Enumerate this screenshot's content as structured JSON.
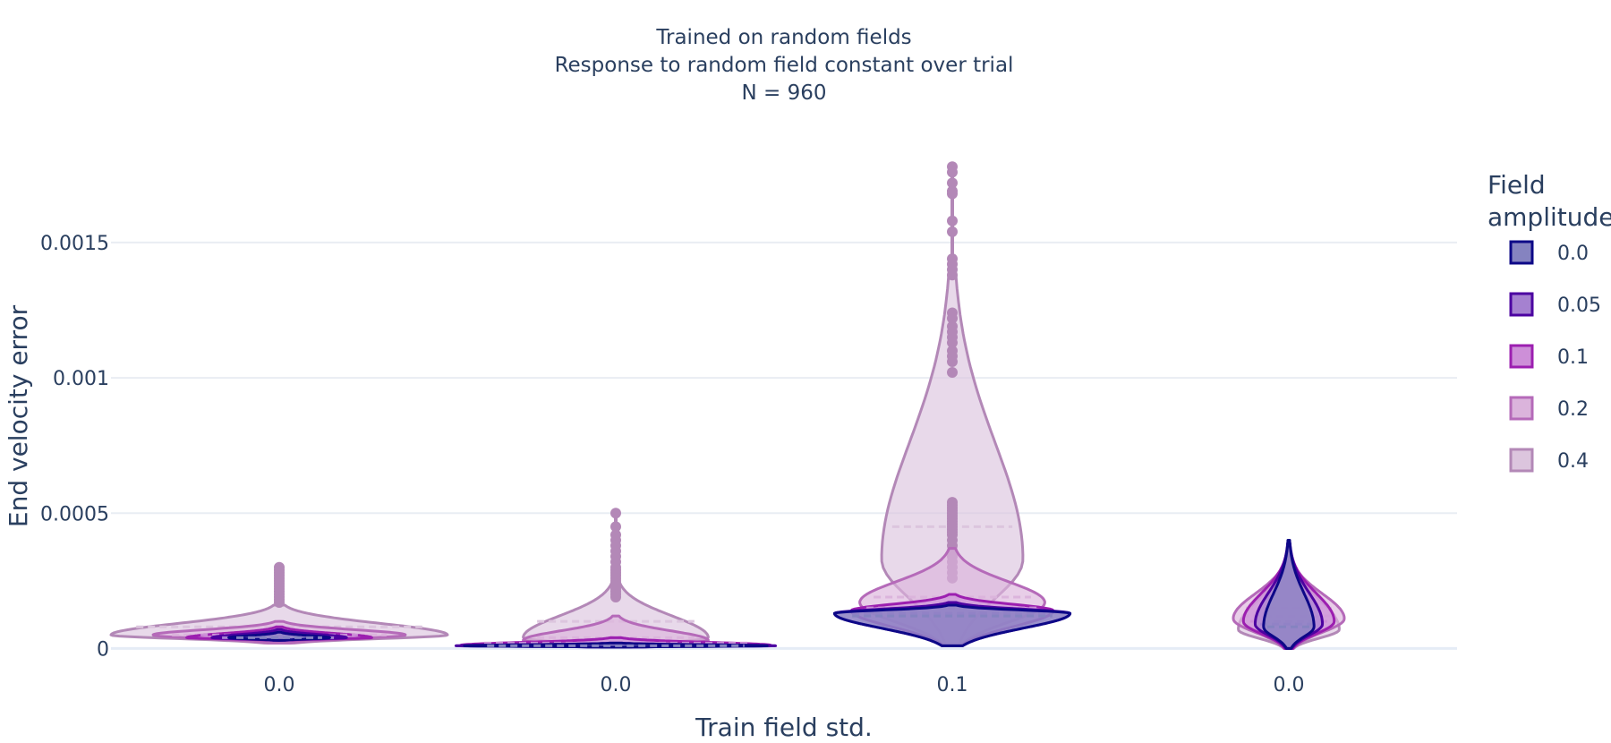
{
  "chart_data": {
    "type": "violin",
    "title_lines": [
      "Trained on random fields",
      "Response to random field constant over trial",
      "N = 960"
    ],
    "xlabel": "Train field std.",
    "ylabel": "End velocity error",
    "ylim": [
      -3.5e-05,
      0.0019
    ],
    "yticks": [
      0,
      0.0005,
      0.001,
      0.0015
    ],
    "ytick_labels": [
      "0",
      "0.0005",
      "0.001",
      "0.0015"
    ],
    "categories": [
      "0.0",
      "0.0",
      "0.1",
      "0.0"
    ],
    "legend_title": "Field amplitude",
    "legend_title_lines": [
      "Field",
      "amplitude"
    ],
    "series": [
      {
        "name": "0.0",
        "color": "#0d0887",
        "fill": "#8583c0",
        "groups": [
          {
            "median": 4e-05,
            "q1": 3.5e-05,
            "q3": 4.5e-05,
            "max": 6e-05,
            "min": 3e-05,
            "peak": 4e-05,
            "width": 0.3,
            "points": []
          },
          {
            "median": 1e-05,
            "q1": 8e-06,
            "q3": 1.2e-05,
            "max": 2e-05,
            "min": 5e-06,
            "peak": 1e-05,
            "width": 0.9,
            "points": []
          },
          {
            "median": 0.00012,
            "q1": 0.0001,
            "q3": 0.00014,
            "max": 0.00016,
            "min": 1e-05,
            "peak": 0.00013,
            "width": 0.7,
            "points": []
          },
          {
            "median": 8e-05,
            "q1": 6e-05,
            "q3": 0.0001,
            "max": 0.0004,
            "min": 0.0,
            "peak": 8e-05,
            "width": 0.15,
            "points": []
          }
        ]
      },
      {
        "name": "0.05",
        "color": "#4c02a1",
        "fill": "#a581d0",
        "groups": [
          {
            "median": 4e-05,
            "q1": 3.5e-05,
            "q3": 4.8e-05,
            "max": 7e-05,
            "min": 3e-05,
            "peak": 4e-05,
            "width": 0.4,
            "points": []
          },
          {
            "median": 1e-05,
            "q1": 8e-06,
            "q3": 1.3e-05,
            "max": 2e-05,
            "min": 5e-06,
            "peak": 1e-05,
            "width": 0.95,
            "points": []
          },
          {
            "median": 0.00013,
            "q1": 0.00011,
            "q3": 0.00015,
            "max": 0.00017,
            "min": 1e-05,
            "peak": 0.00013,
            "width": 0.7,
            "points": []
          },
          {
            "median": 9e-05,
            "q1": 7e-05,
            "q3": 0.00011,
            "max": 0.00039,
            "min": 0.0,
            "peak": 9e-05,
            "width": 0.2,
            "points": []
          }
        ]
      },
      {
        "name": "0.1",
        "color": "#9c1fb0",
        "fill": "#cd8fd8",
        "groups": [
          {
            "median": 5e-05,
            "q1": 4e-05,
            "q3": 6e-05,
            "max": 8e-05,
            "min": 3e-05,
            "peak": 4e-05,
            "width": 0.55,
            "points": []
          },
          {
            "median": 2e-05,
            "q1": 1.5e-05,
            "q3": 3e-05,
            "max": 4e-05,
            "min": 5e-06,
            "peak": 1.2e-05,
            "width": 0.92,
            "points": []
          },
          {
            "median": 0.00015,
            "q1": 0.00012,
            "q3": 0.00017,
            "max": 0.0002,
            "min": 1e-05,
            "peak": 0.00014,
            "width": 0.6,
            "points": []
          },
          {
            "median": 0.0001,
            "q1": 8e-05,
            "q3": 0.00012,
            "max": 0.00037,
            "min": 0.0,
            "peak": 0.0001,
            "width": 0.27,
            "points": []
          }
        ]
      },
      {
        "name": "0.2",
        "color": "#b56ab9",
        "fill": "#dbb4dc",
        "groups": [
          {
            "median": 5e-05,
            "q1": 4e-05,
            "q3": 7e-05,
            "max": 0.0001,
            "min": 2e-05,
            "peak": 5e-05,
            "width": 0.75,
            "points": []
          },
          {
            "median": 4e-05,
            "q1": 2e-05,
            "q3": 6e-05,
            "max": 0.00012,
            "min": 5e-06,
            "peak": 3e-05,
            "width": 0.55,
            "points": []
          },
          {
            "median": 0.00019,
            "q1": 0.00015,
            "q3": 0.00024,
            "max": 0.00037,
            "min": 1e-05,
            "peak": 0.00017,
            "width": 0.55,
            "points": []
          },
          {
            "median": 0.00012,
            "q1": 9e-05,
            "q3": 0.00015,
            "max": 0.00035,
            "min": 0.0,
            "peak": 0.00011,
            "width": 0.33,
            "points": []
          }
        ]
      },
      {
        "name": "0.4",
        "color": "#b388b7",
        "fill": "#dcc5de",
        "groups": [
          {
            "median": 8e-05,
            "q1": 6e-05,
            "q3": 0.0001,
            "max": 0.00016,
            "min": 2e-05,
            "peak": 5e-05,
            "width": 1.0,
            "points": [
              0.0003,
              0.00029,
              0.00028,
              0.00027,
              0.00026,
              0.00025,
              0.00024,
              0.00023,
              0.00022,
              0.00021,
              0.0002,
              0.00019,
              0.00018,
              0.00017
            ]
          },
          {
            "median": 0.0001,
            "q1": 6e-05,
            "q3": 0.00015,
            "max": 0.00025,
            "min": 5e-06,
            "peak": 4e-05,
            "width": 0.55,
            "points": [
              0.0005,
              0.00045,
              0.00042,
              0.0004,
              0.00038,
              0.00036,
              0.00034,
              0.00032,
              0.0003,
              0.00029,
              0.00028,
              0.00027,
              0.00026,
              0.00025,
              0.00024,
              0.00023,
              0.00022,
              0.00021,
              0.0002,
              0.00019
            ]
          },
          {
            "median": 0.00045,
            "q1": 0.00028,
            "q3": 0.0005,
            "max": 0.00145,
            "min": 1e-05,
            "peak": 0.00033,
            "width": 0.42,
            "points": [
              0.00178,
              0.00176,
              0.00172,
              0.00169,
              0.00168,
              0.00158,
              0.00154,
              0.00144,
              0.00142,
              0.0014,
              0.00138,
              0.00124,
              0.00122,
              0.00119,
              0.00117,
              0.00115,
              0.00113,
              0.0011,
              0.00108,
              0.00106,
              0.00102,
              0.00054,
              0.00053,
              0.00052,
              0.00051,
              0.0005,
              0.00049,
              0.00048,
              0.00047,
              0.00046,
              0.00045,
              0.00044,
              0.00043,
              0.00042,
              0.0004,
              0.00038,
              0.00036,
              0.00034,
              0.00032,
              0.0003,
              0.00028,
              0.00026
            ]
          },
          {
            "median": 0.00015,
            "q1": 0.0001,
            "q3": 0.0002,
            "max": 0.00036,
            "min": 0.0,
            "peak": 7e-05,
            "width": 0.3,
            "points": []
          }
        ]
      }
    ]
  }
}
